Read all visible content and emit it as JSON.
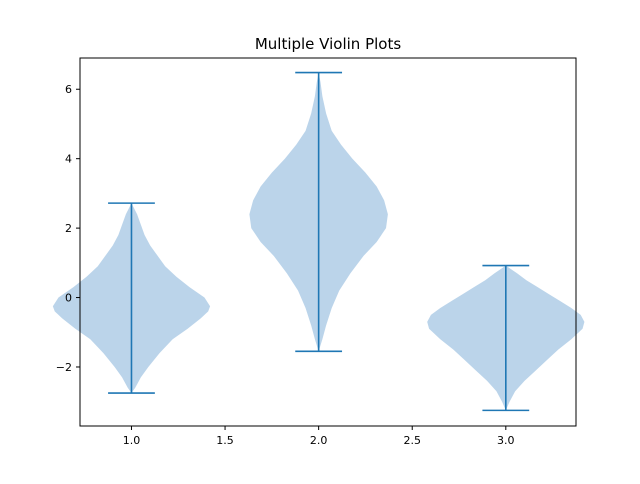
{
  "chart_data": {
    "type": "violin",
    "title": "Multiple Violin Plots",
    "xlabel": "",
    "ylabel": "",
    "xlim": [
      0.725,
      3.375
    ],
    "ylim": [
      -3.7,
      6.9
    ],
    "xticks": [
      1.0,
      1.5,
      2.0,
      2.5,
      3.0
    ],
    "xtick_labels": [
      "1.0",
      "1.5",
      "2.0",
      "2.5",
      "3.0"
    ],
    "yticks": [
      -2,
      0,
      2,
      4,
      6
    ],
    "ytick_labels": [
      "−2",
      "0",
      "2",
      "4",
      "6"
    ],
    "grid": false,
    "colors": {
      "body": "#a8c8e4",
      "lines": "#1f77b4"
    },
    "violins": [
      {
        "position": 1.0,
        "min": -2.75,
        "max": 2.72,
        "profile": [
          [
            -2.75,
            0.0
          ],
          [
            -2.6,
            0.02
          ],
          [
            -2.3,
            0.05
          ],
          [
            -2.0,
            0.09
          ],
          [
            -1.6,
            0.15
          ],
          [
            -1.2,
            0.22
          ],
          [
            -0.9,
            0.3
          ],
          [
            -0.6,
            0.37
          ],
          [
            -0.4,
            0.41
          ],
          [
            -0.25,
            0.42
          ],
          [
            0.0,
            0.39
          ],
          [
            0.3,
            0.31
          ],
          [
            0.6,
            0.24
          ],
          [
            0.9,
            0.18
          ],
          [
            1.2,
            0.14
          ],
          [
            1.5,
            0.1
          ],
          [
            1.8,
            0.07
          ],
          [
            2.1,
            0.05
          ],
          [
            2.4,
            0.03
          ],
          [
            2.72,
            0.0
          ]
        ]
      },
      {
        "position": 2.0,
        "min": -1.55,
        "max": 6.48,
        "profile": [
          [
            -1.55,
            0.0
          ],
          [
            -1.2,
            0.02
          ],
          [
            -0.8,
            0.04
          ],
          [
            -0.3,
            0.07
          ],
          [
            0.2,
            0.11
          ],
          [
            0.7,
            0.17
          ],
          [
            1.2,
            0.24
          ],
          [
            1.6,
            0.31
          ],
          [
            2.0,
            0.36
          ],
          [
            2.4,
            0.37
          ],
          [
            2.8,
            0.35
          ],
          [
            3.2,
            0.31
          ],
          [
            3.6,
            0.25
          ],
          [
            4.0,
            0.18
          ],
          [
            4.4,
            0.12
          ],
          [
            4.8,
            0.07
          ],
          [
            5.3,
            0.04
          ],
          [
            5.8,
            0.02
          ],
          [
            6.2,
            0.01
          ],
          [
            6.48,
            0.0
          ]
        ]
      },
      {
        "position": 3.0,
        "min": -3.25,
        "max": 0.92,
        "profile": [
          [
            -3.25,
            0.0
          ],
          [
            -3.0,
            0.02
          ],
          [
            -2.7,
            0.05
          ],
          [
            -2.4,
            0.1
          ],
          [
            -2.1,
            0.16
          ],
          [
            -1.8,
            0.22
          ],
          [
            -1.5,
            0.28
          ],
          [
            -1.2,
            0.35
          ],
          [
            -0.9,
            0.41
          ],
          [
            -0.7,
            0.42
          ],
          [
            -0.5,
            0.4
          ],
          [
            -0.3,
            0.35
          ],
          [
            -0.1,
            0.29
          ],
          [
            0.1,
            0.23
          ],
          [
            0.3,
            0.17
          ],
          [
            0.5,
            0.11
          ],
          [
            0.7,
            0.06
          ],
          [
            0.92,
            0.0
          ]
        ]
      }
    ]
  }
}
